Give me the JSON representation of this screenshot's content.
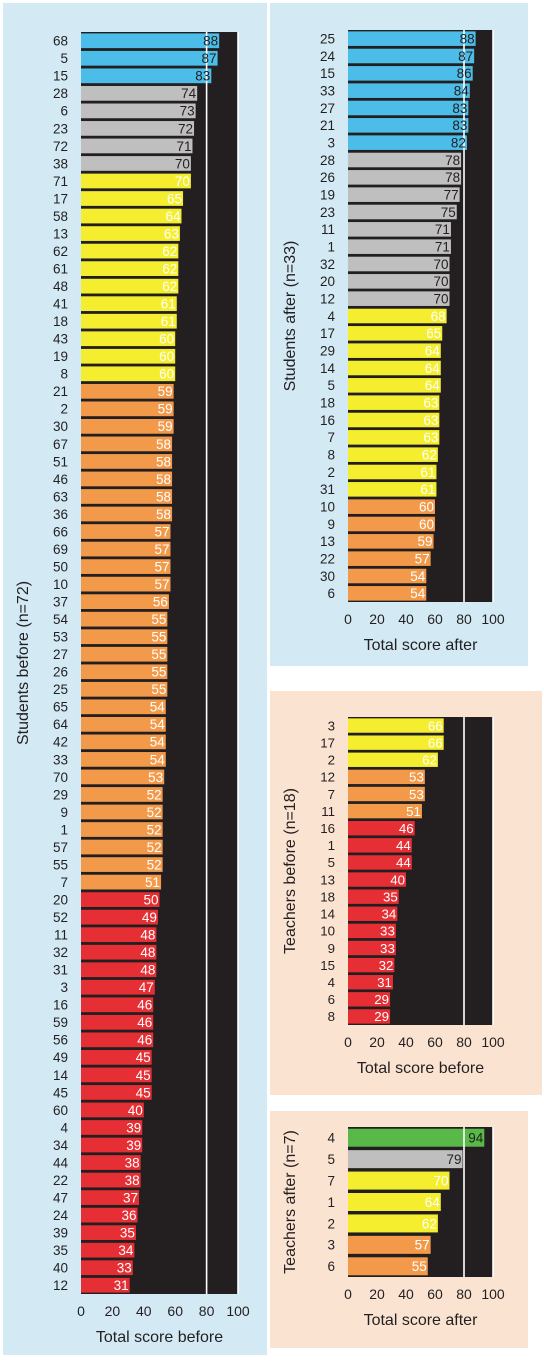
{
  "colors": {
    "blue": "#4bbde8",
    "gray": "#bfbfbf",
    "yellow": "#f4ee2e",
    "orange": "#f39a4a",
    "red": "#e62f34",
    "green": "#58b848",
    "plot_bg": "#231f20",
    "panel_blue": "#d3eaf5",
    "panel_peach": "#fbe3d2"
  },
  "chart_data": [
    {
      "type": "bar",
      "orientation": "horizontal",
      "ylabel": "Students before (n=72)",
      "xlabel": "Total score before",
      "xlim": [
        0,
        100
      ],
      "x_ticks": [
        0,
        20,
        40,
        60,
        80,
        100
      ],
      "grid": "vertical lines at 80 and 100",
      "categories": [
        "68",
        "5",
        "15",
        "28",
        "6",
        "23",
        "72",
        "38",
        "71",
        "17",
        "58",
        "13",
        "62",
        "61",
        "48",
        "41",
        "18",
        "43",
        "19",
        "8",
        "21",
        "2",
        "30",
        "67",
        "51",
        "46",
        "63",
        "36",
        "66",
        "69",
        "50",
        "10",
        "37",
        "54",
        "53",
        "27",
        "26",
        "25",
        "65",
        "64",
        "42",
        "33",
        "70",
        "29",
        "9",
        "1",
        "57",
        "55",
        "7",
        "20",
        "52",
        "11",
        "32",
        "31",
        "3",
        "16",
        "59",
        "56",
        "49",
        "14",
        "45",
        "60",
        "4",
        "34",
        "44",
        "22",
        "47",
        "24",
        "39",
        "35",
        "40",
        "12"
      ],
      "values": [
        88,
        87,
        83,
        74,
        73,
        72,
        71,
        70,
        70,
        65,
        64,
        63,
        62,
        62,
        62,
        61,
        61,
        60,
        60,
        60,
        59,
        59,
        59,
        58,
        58,
        58,
        58,
        58,
        57,
        57,
        57,
        57,
        56,
        55,
        55,
        55,
        55,
        55,
        54,
        54,
        54,
        54,
        53,
        52,
        52,
        52,
        52,
        52,
        51,
        50,
        49,
        48,
        48,
        48,
        47,
        46,
        46,
        46,
        45,
        45,
        45,
        40,
        39,
        39,
        38,
        38,
        37,
        36,
        35,
        34,
        33,
        31
      ],
      "bar_colors": [
        "blue",
        "blue",
        "blue",
        "gray",
        "gray",
        "gray",
        "gray",
        "gray",
        "yellow",
        "yellow",
        "yellow",
        "yellow",
        "yellow",
        "yellow",
        "yellow",
        "yellow",
        "yellow",
        "yellow",
        "yellow",
        "yellow",
        "orange",
        "orange",
        "orange",
        "orange",
        "orange",
        "orange",
        "orange",
        "orange",
        "orange",
        "orange",
        "orange",
        "orange",
        "orange",
        "orange",
        "orange",
        "orange",
        "orange",
        "orange",
        "orange",
        "orange",
        "orange",
        "orange",
        "orange",
        "orange",
        "orange",
        "orange",
        "orange",
        "orange",
        "orange",
        "red",
        "red",
        "red",
        "red",
        "red",
        "red",
        "red",
        "red",
        "red",
        "red",
        "red",
        "red",
        "red",
        "red",
        "red",
        "red",
        "red",
        "red",
        "red",
        "red",
        "red",
        "red",
        "red"
      ]
    },
    {
      "type": "bar",
      "orientation": "horizontal",
      "ylabel": "Students after (n=33)",
      "xlabel": "Total score after",
      "xlim": [
        0,
        100
      ],
      "x_ticks": [
        0,
        20,
        40,
        60,
        80,
        100
      ],
      "grid": "vertical lines at 80 and 100",
      "categories": [
        "25",
        "24",
        "15",
        "33",
        "27",
        "21",
        "3",
        "28",
        "26",
        "19",
        "23",
        "11",
        "1",
        "32",
        "20",
        "12",
        "4",
        "17",
        "29",
        "14",
        "5",
        "18",
        "16",
        "7",
        "8",
        "2",
        "31",
        "10",
        "9",
        "13",
        "22",
        "30",
        "6"
      ],
      "values": [
        88,
        87,
        86,
        84,
        83,
        83,
        82,
        78,
        78,
        77,
        75,
        71,
        71,
        70,
        70,
        70,
        68,
        65,
        64,
        64,
        64,
        63,
        63,
        63,
        62,
        61,
        61,
        60,
        60,
        59,
        57,
        54,
        54
      ],
      "bar_colors": [
        "blue",
        "blue",
        "blue",
        "blue",
        "blue",
        "blue",
        "blue",
        "gray",
        "gray",
        "gray",
        "gray",
        "gray",
        "gray",
        "gray",
        "gray",
        "gray",
        "yellow",
        "yellow",
        "yellow",
        "yellow",
        "yellow",
        "yellow",
        "yellow",
        "yellow",
        "yellow",
        "yellow",
        "yellow",
        "orange",
        "orange",
        "orange",
        "orange",
        "orange",
        "orange"
      ]
    },
    {
      "type": "bar",
      "orientation": "horizontal",
      "ylabel": "Teachers before (n=18)",
      "xlabel": "Total score before",
      "xlim": [
        0,
        100
      ],
      "x_ticks": [
        0,
        20,
        40,
        60,
        80,
        100
      ],
      "grid": "vertical lines at 80 and 100",
      "categories": [
        "3",
        "17",
        "2",
        "12",
        "7",
        "11",
        "16",
        "1",
        "5",
        "13",
        "18",
        "14",
        "10",
        "9",
        "15",
        "4",
        "6",
        "8"
      ],
      "values": [
        66,
        66,
        62,
        53,
        53,
        51,
        46,
        44,
        44,
        40,
        35,
        34,
        33,
        33,
        32,
        31,
        29,
        29
      ],
      "bar_colors": [
        "yellow",
        "yellow",
        "yellow",
        "orange",
        "orange",
        "orange",
        "red",
        "red",
        "red",
        "red",
        "red",
        "red",
        "red",
        "red",
        "red",
        "red",
        "red",
        "red"
      ]
    },
    {
      "type": "bar",
      "orientation": "horizontal",
      "ylabel": "Teachers after (n=7)",
      "xlabel": "Total score after",
      "xlim": [
        0,
        100
      ],
      "x_ticks": [
        0,
        20,
        40,
        60,
        80,
        100
      ],
      "grid": "vertical lines at 80 and 100",
      "categories": [
        "4",
        "5",
        "7",
        "1",
        "2",
        "3",
        "6"
      ],
      "values": [
        94,
        79,
        70,
        64,
        62,
        57,
        55
      ],
      "bar_colors": [
        "green",
        "gray",
        "yellow",
        "yellow",
        "yellow",
        "orange",
        "orange"
      ]
    }
  ]
}
